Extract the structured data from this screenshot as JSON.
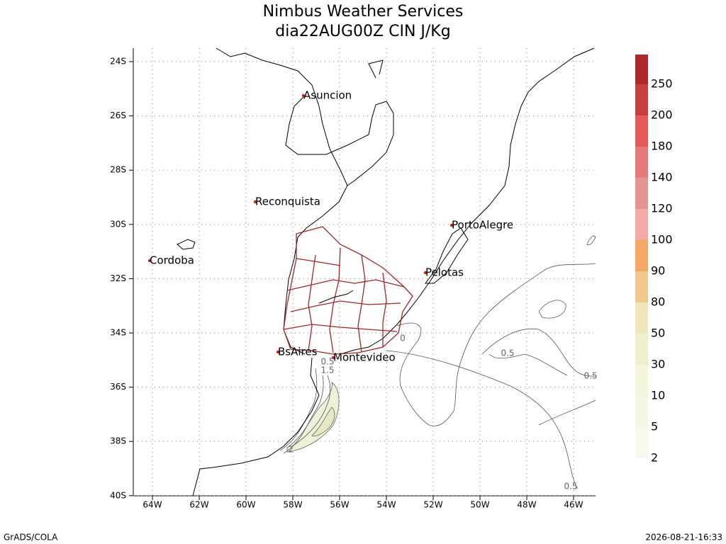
{
  "header": {
    "title": "Nimbus Weather Services",
    "subtitle": "dia22AUG00Z CIN J/Kg"
  },
  "map": {
    "lat_labels": [
      "24S",
      "26S",
      "28S",
      "30S",
      "32S",
      "34S",
      "36S",
      "38S",
      "40S"
    ],
    "lon_labels": [
      "64W",
      "62W",
      "60W",
      "58W",
      "56W",
      "54W",
      "52W",
      "50W",
      "48W",
      "46W"
    ],
    "cities": [
      "Asuncion",
      "Reconquista",
      "Cordoba",
      "PortoAlegre",
      "Pelotas",
      "BsAires",
      "Montevideo"
    ],
    "contour_labels": [
      "0.5",
      "1.5",
      "2",
      "0",
      "0.5",
      "0.5",
      "0.5"
    ]
  },
  "colorbar": {
    "labels": [
      "2",
      "5",
      "10",
      "30",
      "50",
      "80",
      "90",
      "100",
      "120",
      "140",
      "180",
      "200",
      "250"
    ]
  },
  "footer": {
    "left": "GrADS/COLA",
    "right": "2026-08-21-16:33"
  }
}
